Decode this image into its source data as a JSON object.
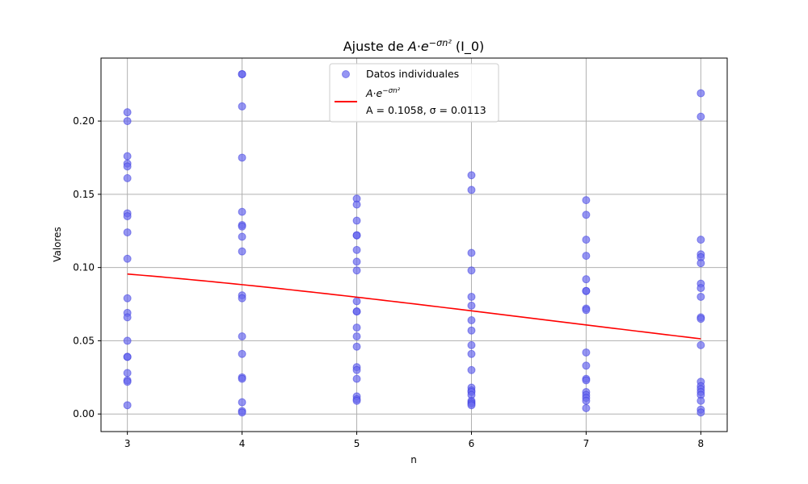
{
  "chart_data": {
    "type": "scatter",
    "title": {
      "prefix": "Ajuste de ",
      "formula": "A·e^{−σn²}",
      "suffix": " (I_0)"
    },
    "xlabel": "n",
    "ylabel": "Valores",
    "xlim": [
      2.77,
      8.23
    ],
    "ylim": [
      -0.012,
      0.243
    ],
    "xticks": [
      "3",
      "4",
      "5",
      "6",
      "7",
      "8"
    ],
    "yticks": [
      "0.00",
      "0.05",
      "0.10",
      "0.15",
      "0.20"
    ],
    "grid": true,
    "legend_position": "top-center",
    "colors": {
      "points": "#6a6aee",
      "points_edge": "#3333dd",
      "fit": "#ff0000"
    },
    "series": [
      {
        "name": "Datos individuales",
        "kind": "scatter",
        "points": [
          {
            "x": 3,
            "y": 0.206
          },
          {
            "x": 3,
            "y": 0.2
          },
          {
            "x": 3,
            "y": 0.176
          },
          {
            "x": 3,
            "y": 0.171
          },
          {
            "x": 3,
            "y": 0.169
          },
          {
            "x": 3,
            "y": 0.161
          },
          {
            "x": 3,
            "y": 0.137
          },
          {
            "x": 3,
            "y": 0.135
          },
          {
            "x": 3,
            "y": 0.124
          },
          {
            "x": 3,
            "y": 0.106
          },
          {
            "x": 3,
            "y": 0.079
          },
          {
            "x": 3,
            "y": 0.069
          },
          {
            "x": 3,
            "y": 0.066
          },
          {
            "x": 3,
            "y": 0.05
          },
          {
            "x": 3,
            "y": 0.039
          },
          {
            "x": 3,
            "y": 0.039
          },
          {
            "x": 3,
            "y": 0.028
          },
          {
            "x": 3,
            "y": 0.023
          },
          {
            "x": 3,
            "y": 0.022
          },
          {
            "x": 3,
            "y": 0.006
          },
          {
            "x": 4,
            "y": 0.232
          },
          {
            "x": 4,
            "y": 0.232
          },
          {
            "x": 4,
            "y": 0.21
          },
          {
            "x": 4,
            "y": 0.175
          },
          {
            "x": 4,
            "y": 0.138
          },
          {
            "x": 4,
            "y": 0.129
          },
          {
            "x": 4,
            "y": 0.128
          },
          {
            "x": 4,
            "y": 0.121
          },
          {
            "x": 4,
            "y": 0.111
          },
          {
            "x": 4,
            "y": 0.081
          },
          {
            "x": 4,
            "y": 0.079
          },
          {
            "x": 4,
            "y": 0.053
          },
          {
            "x": 4,
            "y": 0.041
          },
          {
            "x": 4,
            "y": 0.025
          },
          {
            "x": 4,
            "y": 0.024
          },
          {
            "x": 4,
            "y": 0.008
          },
          {
            "x": 4,
            "y": 0.002
          },
          {
            "x": 4,
            "y": 0.001
          },
          {
            "x": 5,
            "y": 0.147
          },
          {
            "x": 5,
            "y": 0.143
          },
          {
            "x": 5,
            "y": 0.132
          },
          {
            "x": 5,
            "y": 0.122
          },
          {
            "x": 5,
            "y": 0.122
          },
          {
            "x": 5,
            "y": 0.112
          },
          {
            "x": 5,
            "y": 0.104
          },
          {
            "x": 5,
            "y": 0.098
          },
          {
            "x": 5,
            "y": 0.077
          },
          {
            "x": 5,
            "y": 0.07
          },
          {
            "x": 5,
            "y": 0.07
          },
          {
            "x": 5,
            "y": 0.059
          },
          {
            "x": 5,
            "y": 0.053
          },
          {
            "x": 5,
            "y": 0.046
          },
          {
            "x": 5,
            "y": 0.032
          },
          {
            "x": 5,
            "y": 0.03
          },
          {
            "x": 5,
            "y": 0.024
          },
          {
            "x": 5,
            "y": 0.012
          },
          {
            "x": 5,
            "y": 0.01
          },
          {
            "x": 5,
            "y": 0.009
          },
          {
            "x": 6,
            "y": 0.163
          },
          {
            "x": 6,
            "y": 0.153
          },
          {
            "x": 6,
            "y": 0.11
          },
          {
            "x": 6,
            "y": 0.098
          },
          {
            "x": 6,
            "y": 0.08
          },
          {
            "x": 6,
            "y": 0.074
          },
          {
            "x": 6,
            "y": 0.064
          },
          {
            "x": 6,
            "y": 0.057
          },
          {
            "x": 6,
            "y": 0.047
          },
          {
            "x": 6,
            "y": 0.041
          },
          {
            "x": 6,
            "y": 0.03
          },
          {
            "x": 6,
            "y": 0.018
          },
          {
            "x": 6,
            "y": 0.016
          },
          {
            "x": 6,
            "y": 0.015
          },
          {
            "x": 6,
            "y": 0.013
          },
          {
            "x": 6,
            "y": 0.009
          },
          {
            "x": 6,
            "y": 0.008
          },
          {
            "x": 6,
            "y": 0.007
          },
          {
            "x": 6,
            "y": 0.006
          },
          {
            "x": 7,
            "y": 0.146
          },
          {
            "x": 7,
            "y": 0.136
          },
          {
            "x": 7,
            "y": 0.119
          },
          {
            "x": 7,
            "y": 0.108
          },
          {
            "x": 7,
            "y": 0.092
          },
          {
            "x": 7,
            "y": 0.084
          },
          {
            "x": 7,
            "y": 0.084
          },
          {
            "x": 7,
            "y": 0.072
          },
          {
            "x": 7,
            "y": 0.071
          },
          {
            "x": 7,
            "y": 0.042
          },
          {
            "x": 7,
            "y": 0.033
          },
          {
            "x": 7,
            "y": 0.024
          },
          {
            "x": 7,
            "y": 0.023
          },
          {
            "x": 7,
            "y": 0.015
          },
          {
            "x": 7,
            "y": 0.013
          },
          {
            "x": 7,
            "y": 0.011
          },
          {
            "x": 7,
            "y": 0.009
          },
          {
            "x": 7,
            "y": 0.004
          },
          {
            "x": 8,
            "y": 0.219
          },
          {
            "x": 8,
            "y": 0.203
          },
          {
            "x": 8,
            "y": 0.119
          },
          {
            "x": 8,
            "y": 0.109
          },
          {
            "x": 8,
            "y": 0.107
          },
          {
            "x": 8,
            "y": 0.103
          },
          {
            "x": 8,
            "y": 0.089
          },
          {
            "x": 8,
            "y": 0.086
          },
          {
            "x": 8,
            "y": 0.08
          },
          {
            "x": 8,
            "y": 0.066
          },
          {
            "x": 8,
            "y": 0.065
          },
          {
            "x": 8,
            "y": 0.047
          },
          {
            "x": 8,
            "y": 0.022
          },
          {
            "x": 8,
            "y": 0.019
          },
          {
            "x": 8,
            "y": 0.017
          },
          {
            "x": 8,
            "y": 0.015
          },
          {
            "x": 8,
            "y": 0.013
          },
          {
            "x": 8,
            "y": 0.009
          },
          {
            "x": 8,
            "y": 0.003
          },
          {
            "x": 8,
            "y": 0.001
          }
        ]
      },
      {
        "name": "Ajuste: A·e^{−σn²}",
        "kind": "line",
        "params_label": "A = 0.1058, σ = 0.0113",
        "params": {
          "A": 0.1058,
          "sigma": 0.0113
        },
        "x_range": [
          3,
          8
        ]
      }
    ]
  }
}
